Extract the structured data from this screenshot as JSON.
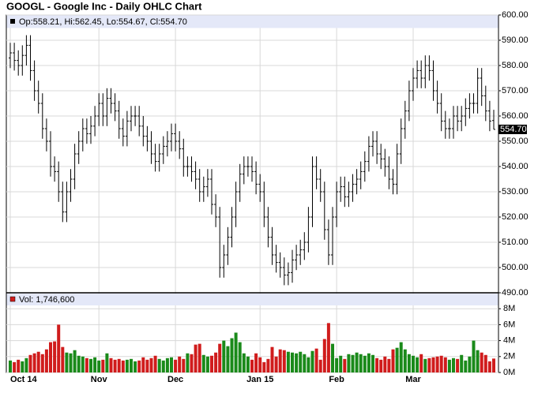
{
  "chart_data": {
    "type": "ohlc",
    "title": "GOOGL - Google Inc - Daily OHLC Chart",
    "info_text": "Op:558.21, Hi:562.45, Lo:554.67, Cl:554.70",
    "volume_text": "Vol: 1,746,600",
    "categories": [
      "Oct 14",
      null,
      null,
      null,
      null,
      null,
      null,
      null,
      null,
      null,
      null,
      null,
      null,
      null,
      null,
      null,
      null,
      null,
      null,
      null,
      null,
      null,
      "Nov",
      null,
      null,
      null,
      null,
      null,
      null,
      null,
      null,
      null,
      null,
      null,
      null,
      null,
      null,
      null,
      null,
      null,
      null,
      "Dec",
      null,
      null,
      null,
      null,
      null,
      null,
      null,
      null,
      null,
      null,
      null,
      null,
      null,
      null,
      null,
      null,
      null,
      null,
      null,
      null,
      "Jan 15",
      null,
      null,
      null,
      null,
      null,
      null,
      null,
      null,
      null,
      null,
      null,
      null,
      null,
      null,
      null,
      null,
      null,
      null,
      "Feb",
      null,
      null,
      null,
      null,
      null,
      null,
      null,
      null,
      null,
      null,
      null,
      null,
      null,
      null,
      null,
      null,
      null,
      null,
      "Mar",
      null,
      null,
      null,
      null,
      null,
      null,
      null,
      null,
      null,
      null,
      null,
      null,
      null,
      null,
      null,
      null,
      null,
      null,
      null,
      null
    ],
    "open": [
      583,
      585,
      582,
      580,
      584,
      588,
      578,
      570,
      565,
      555,
      550,
      540,
      538,
      530,
      522,
      530,
      535,
      545,
      550,
      555,
      553,
      556,
      560,
      565,
      560,
      567,
      565,
      562,
      555,
      552,
      558,
      560,
      560,
      556,
      552,
      550,
      545,
      542,
      545,
      548,
      550,
      553,
      550,
      547,
      540,
      540,
      538,
      535,
      530,
      532,
      535,
      525,
      520,
      500,
      505,
      512,
      520,
      530,
      537,
      540,
      540,
      538,
      533,
      530,
      520,
      512,
      505,
      502,
      500,
      497,
      498,
      503,
      505,
      507,
      510,
      520,
      540,
      535,
      530,
      515,
      505,
      520,
      530,
      532,
      528,
      530,
      533,
      535,
      538,
      542,
      548,
      550,
      545,
      543,
      540,
      535,
      533,
      545,
      555,
      562,
      570,
      575,
      578,
      575,
      580,
      578,
      570,
      565,
      558,
      555,
      555,
      560,
      558,
      560,
      563,
      565,
      565,
      575,
      568,
      562,
      558.21
    ],
    "high": [
      589,
      589,
      586,
      588,
      592,
      592,
      582,
      574,
      569,
      559,
      554,
      544,
      542,
      534,
      534,
      539,
      549,
      554,
      559,
      559,
      560,
      564,
      569,
      569,
      571,
      571,
      569,
      566,
      559,
      562,
      564,
      564,
      564,
      560,
      556,
      554,
      549,
      549,
      552,
      554,
      557,
      557,
      554,
      551,
      544,
      544,
      542,
      539,
      536,
      539,
      539,
      529,
      524,
      509,
      516,
      524,
      534,
      541,
      544,
      544,
      544,
      542,
      537,
      534,
      524,
      516,
      509,
      506,
      504,
      502,
      507,
      509,
      511,
      514,
      524,
      544,
      544,
      539,
      534,
      519,
      524,
      534,
      536,
      536,
      534,
      537,
      539,
      542,
      546,
      552,
      554,
      554,
      549,
      547,
      544,
      539,
      549,
      559,
      566,
      574,
      579,
      582,
      582,
      584,
      584,
      582,
      574,
      569,
      562,
      559,
      564,
      564,
      564,
      567,
      569,
      569,
      579,
      579,
      572,
      566,
      562.45
    ],
    "low": [
      579,
      578,
      576,
      576,
      580,
      574,
      566,
      561,
      551,
      546,
      536,
      534,
      526,
      518,
      518,
      526,
      531,
      541,
      546,
      549,
      549,
      552,
      556,
      556,
      556,
      561,
      558,
      551,
      548,
      548,
      554,
      556,
      552,
      548,
      546,
      541,
      538,
      538,
      541,
      544,
      546,
      546,
      543,
      536,
      536,
      534,
      531,
      526,
      526,
      528,
      521,
      516,
      496,
      496,
      501,
      508,
      516,
      526,
      533,
      536,
      534,
      529,
      526,
      516,
      508,
      501,
      498,
      496,
      493,
      493,
      494,
      499,
      501,
      503,
      506,
      516,
      531,
      526,
      511,
      501,
      501,
      516,
      526,
      524,
      524,
      526,
      529,
      531,
      534,
      538,
      544,
      541,
      539,
      536,
      531,
      529,
      529,
      541,
      551,
      558,
      566,
      571,
      571,
      571,
      574,
      566,
      561,
      554,
      551,
      551,
      551,
      554,
      554,
      556,
      559,
      561,
      561,
      564,
      558,
      554,
      554.67
    ],
    "close": [
      585,
      582,
      580,
      584,
      588,
      578,
      570,
      565,
      555,
      550,
      540,
      538,
      530,
      522,
      530,
      535,
      545,
      550,
      555,
      553,
      556,
      560,
      565,
      560,
      567,
      565,
      562,
      555,
      552,
      558,
      560,
      560,
      556,
      552,
      550,
      545,
      542,
      545,
      548,
      550,
      553,
      550,
      547,
      540,
      540,
      538,
      535,
      530,
      532,
      535,
      525,
      520,
      500,
      505,
      512,
      520,
      530,
      537,
      540,
      540,
      538,
      533,
      530,
      520,
      512,
      505,
      502,
      500,
      497,
      498,
      503,
      505,
      507,
      510,
      520,
      540,
      535,
      530,
      515,
      505,
      520,
      530,
      532,
      528,
      530,
      533,
      535,
      538,
      542,
      548,
      550,
      545,
      543,
      540,
      535,
      533,
      545,
      555,
      562,
      570,
      575,
      578,
      575,
      580,
      578,
      570,
      565,
      558,
      555,
      555,
      560,
      558,
      560,
      563,
      565,
      565,
      575,
      568,
      562,
      558,
      554.7
    ],
    "volume": [
      1.5,
      1.3,
      1.6,
      1.4,
      1.8,
      2.2,
      2.4,
      2.6,
      2.3,
      2.9,
      3.8,
      3.9,
      6.0,
      3.2,
      2.5,
      2.4,
      2.8,
      2.1,
      2.0,
      1.8,
      1.7,
      1.9,
      1.5,
      1.6,
      2.4,
      1.8,
      1.6,
      1.7,
      1.5,
      1.6,
      1.7,
      1.4,
      1.5,
      1.9,
      1.6,
      1.8,
      2.1,
      1.7,
      1.5,
      1.8,
      1.9,
      1.6,
      2.0,
      1.7,
      2.4,
      2.3,
      3.5,
      3.6,
      2.2,
      2.0,
      2.1,
      2.5,
      3.6,
      4.0,
      3.3,
      4.3,
      5.0,
      3.8,
      2.4,
      2.0,
      1.6,
      2.4,
      1.9,
      1.3,
      1.7,
      3.2,
      2.0,
      2.9,
      2.8,
      2.6,
      2.5,
      2.4,
      2.6,
      2.3,
      1.9,
      2.7,
      3.0,
      1.6,
      4.2,
      6.2,
      3.6,
      1.8,
      2.1,
      1.7,
      2.3,
      2.2,
      2.5,
      2.3,
      2.1,
      2.4,
      2.2,
      1.8,
      1.6,
      2.0,
      1.7,
      2.9,
      3.1,
      3.8,
      2.9,
      2.3,
      2.1,
      1.9,
      2.3,
      1.7,
      1.8,
      1.9,
      2.0,
      2.1,
      1.9,
      1.6,
      1.8,
      1.7,
      2.2,
      1.5,
      2.0,
      4.0,
      2.8,
      2.5,
      2.2,
      1.4,
      1.7466
    ],
    "ylim": [
      490,
      600
    ],
    "yticks": [
      {
        "value": 490,
        "label": "490.00"
      },
      {
        "value": 500,
        "label": "500.00"
      },
      {
        "value": 510,
        "label": "510.00"
      },
      {
        "value": 520,
        "label": "520.00"
      },
      {
        "value": 530,
        "label": "530.00"
      },
      {
        "value": 540,
        "label": "540.00"
      },
      {
        "value": 550,
        "label": "550.00"
      },
      {
        "value": 560,
        "label": "560.00"
      },
      {
        "value": 570,
        "label": "570.00"
      },
      {
        "value": 580,
        "label": "580.00"
      },
      {
        "value": 590,
        "label": "590.00"
      },
      {
        "value": 600,
        "label": "600.00"
      }
    ],
    "volume_ylim": [
      0,
      10
    ],
    "volume_yticks": [
      {
        "value": 0,
        "label": "0M"
      },
      {
        "value": 2,
        "label": "2M"
      },
      {
        "value": 4,
        "label": "4M"
      },
      {
        "value": 6,
        "label": "6M"
      },
      {
        "value": 8,
        "label": "8M"
      }
    ],
    "last_price": {
      "value": 554.7,
      "label": "554.70"
    },
    "bar_color": "#000000",
    "up_color": "#1a8a1a",
    "down_color": "#d01c1c",
    "grid": true
  }
}
